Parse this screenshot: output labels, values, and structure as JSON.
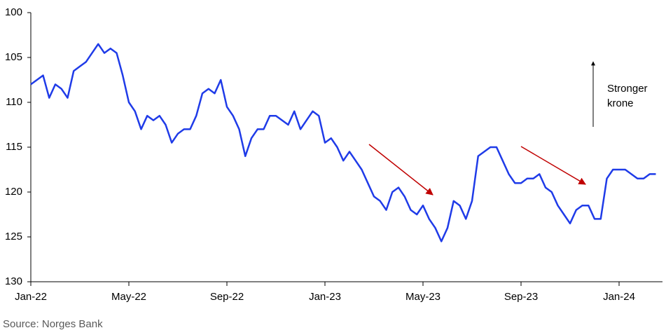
{
  "chart_data": {
    "type": "line",
    "categories": [
      "Jan-22",
      null,
      null,
      null,
      null,
      null,
      null,
      null,
      null,
      null,
      null,
      null,
      null,
      null,
      null,
      null,
      "May-22",
      null,
      null,
      null,
      null,
      null,
      null,
      null,
      null,
      null,
      null,
      null,
      null,
      null,
      null,
      null,
      "Sep-22",
      null,
      null,
      null,
      null,
      null,
      null,
      null,
      null,
      null,
      null,
      null,
      null,
      null,
      null,
      null,
      "Jan-23",
      null,
      null,
      null,
      null,
      null,
      null,
      null,
      null,
      null,
      null,
      null,
      null,
      null,
      null,
      null,
      "May-23",
      null,
      null,
      null,
      null,
      null,
      null,
      null,
      null,
      null,
      null,
      null,
      null,
      null,
      null,
      null,
      "Sep-23",
      null,
      null,
      null,
      null,
      null,
      null,
      null,
      null,
      null,
      null,
      null,
      null,
      null,
      null,
      null,
      "Jan-24",
      null,
      null,
      null,
      null,
      null,
      null
    ],
    "series": [
      {
        "color": "#1f3be8",
        "values": [
          108,
          107.5,
          107,
          109.5,
          108,
          108.5,
          109.5,
          106.5,
          106,
          105.5,
          104.5,
          103.5,
          104.5,
          104,
          104.5,
          107,
          110,
          111,
          113,
          111.5,
          112,
          111.5,
          112.5,
          114.5,
          113.5,
          113,
          113,
          111.5,
          109,
          108.5,
          109,
          107.5,
          110.5,
          111.5,
          113,
          116,
          114,
          113,
          113,
          111.5,
          111.5,
          112,
          112.5,
          111,
          113,
          112,
          111,
          111.5,
          114.5,
          114,
          115,
          116.5,
          115.5,
          116.5,
          117.5,
          119,
          120.5,
          121,
          122,
          120,
          119.5,
          120.5,
          122,
          122.5,
          121.5,
          123,
          124,
          125.5,
          124,
          121,
          121.5,
          123,
          121,
          116,
          115.5,
          115,
          115,
          116.5,
          118,
          119,
          119,
          118.5,
          118.5,
          118,
          119.5,
          120,
          121.5,
          122.5,
          123.5,
          122,
          121.5,
          121.5,
          123,
          123,
          118.5,
          117.5,
          117.5,
          117.5,
          118,
          118.5,
          118.5,
          118,
          118
        ]
      }
    ],
    "ylim": [
      100,
      130
    ],
    "yticks": [
      100,
      105,
      110,
      115,
      120,
      125,
      130
    ],
    "inverted": true,
    "annotation": [
      "Stronger",
      "krone"
    ],
    "source": "Source: Norges Bank"
  }
}
